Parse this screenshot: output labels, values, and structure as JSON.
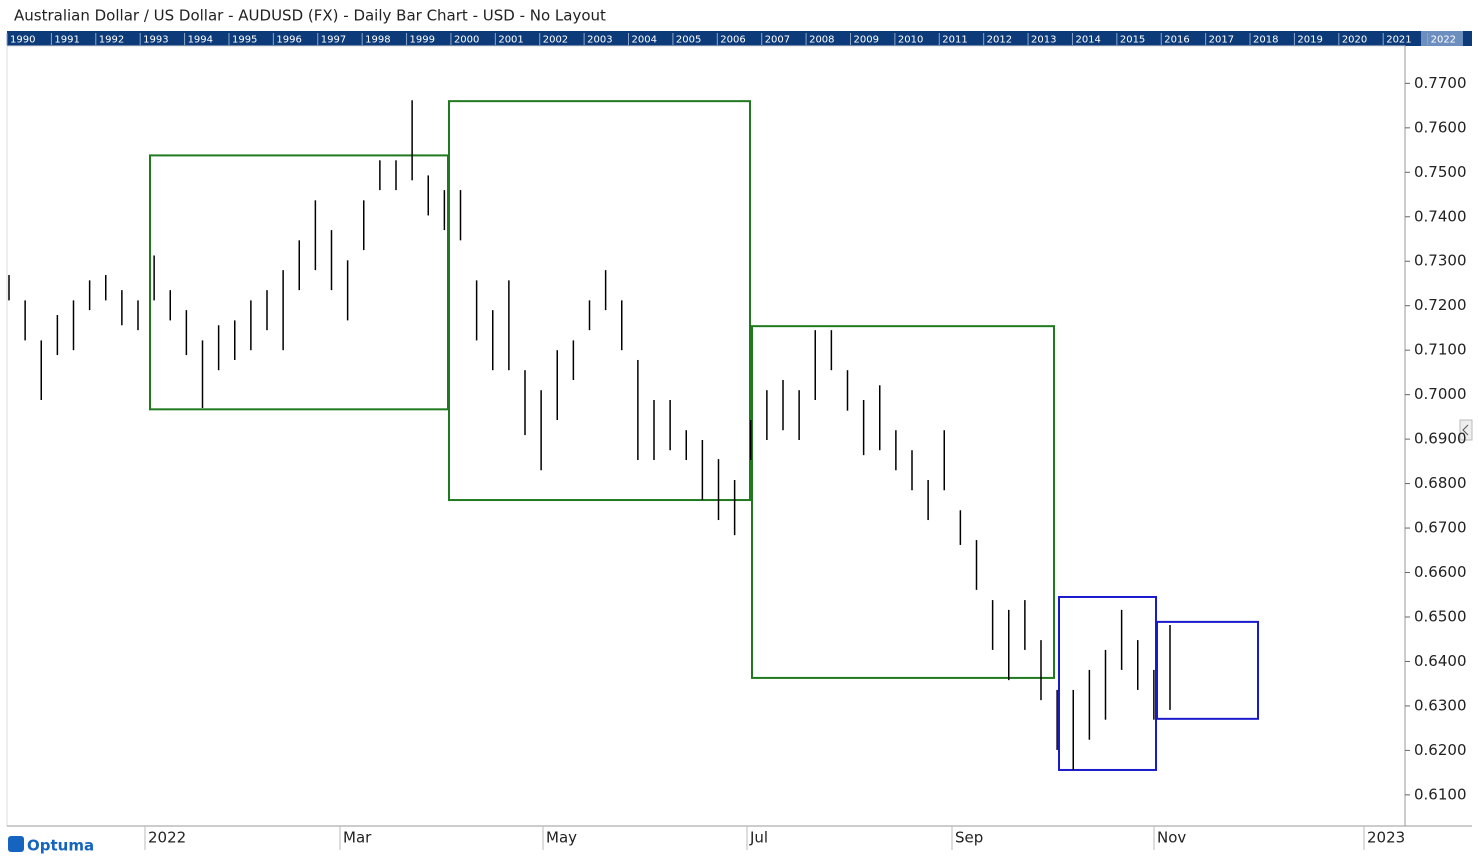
{
  "header": {
    "title": "Australian Dollar / US Dollar - AUDUSD (FX) - Daily Bar Chart - USD - No Layout"
  },
  "timeline_years": [
    "1990",
    "1991",
    "1992",
    "1993",
    "1994",
    "1995",
    "1996",
    "1997",
    "1998",
    "1999",
    "2000",
    "2001",
    "2002",
    "2003",
    "2004",
    "2005",
    "2006",
    "2007",
    "2008",
    "2009",
    "2010",
    "2011",
    "2012",
    "2013",
    "2014",
    "2015",
    "2016",
    "2017",
    "2018",
    "2019",
    "2020",
    "2021",
    "2022"
  ],
  "logo": "Optuma",
  "chart_data": {
    "type": "ohlc",
    "color": "#000000",
    "x_labels": [
      "2022",
      "Mar",
      "May",
      "Jul",
      "Sep",
      "Nov",
      "2023"
    ],
    "ylim": [
      0.603,
      0.782
    ],
    "yticks": [
      {
        "value": 0.61,
        "label": "0.6100"
      },
      {
        "value": 0.62,
        "label": "0.6200"
      },
      {
        "value": 0.63,
        "label": "0.6300"
      },
      {
        "value": 0.64,
        "label": "0.6400"
      },
      {
        "value": 0.65,
        "label": "0.6500"
      },
      {
        "value": 0.66,
        "label": "0.6600"
      },
      {
        "value": 0.67,
        "label": "0.6700"
      },
      {
        "value": 0.68,
        "label": "0.6800"
      },
      {
        "value": 0.69,
        "label": "0.6900"
      },
      {
        "value": 0.7,
        "label": "0.7000"
      },
      {
        "value": 0.71,
        "label": "0.7100"
      },
      {
        "value": 0.72,
        "label": "0.7200"
      },
      {
        "value": 0.73,
        "label": "0.7300"
      },
      {
        "value": 0.74,
        "label": "0.7400"
      },
      {
        "value": 0.75,
        "label": "0.7500"
      },
      {
        "value": 0.76,
        "label": "0.7600"
      },
      {
        "value": 0.77,
        "label": "0.7700"
      }
    ],
    "high": [
      0.7269,
      0.7212,
      0.7122,
      0.7179,
      0.7212,
      0.7257,
      0.7269,
      0.7235,
      0.7212,
      0.7313,
      0.7235,
      0.719,
      0.7122,
      0.7156,
      0.7167,
      0.7212,
      0.7235,
      0.728,
      0.7347,
      0.7437,
      0.737,
      0.7302,
      0.7437,
      0.7527,
      0.7527,
      0.7662,
      0.7493,
      0.746,
      0.746,
      0.7257,
      0.719,
      0.7257,
      0.7055,
      0.701,
      0.71,
      0.7122,
      0.7212,
      0.728,
      0.7212,
      0.7078,
      0.6988,
      0.6988,
      0.692,
      0.6898,
      0.6855,
      0.6808,
      0.6943,
      0.701,
      0.7033,
      0.701,
      0.7145,
      0.7145,
      0.7055,
      0.6988,
      0.7021,
      0.692,
      0.6875,
      0.6808,
      0.692,
      0.674,
      0.6673,
      0.6538,
      0.6516,
      0.6538,
      0.6448,
      0.6336,
      0.6336,
      0.6381,
      0.6426,
      0.6516,
      0.6448,
      0.6381,
      0.6482
    ],
    "low": [
      0.7212,
      0.7122,
      0.6988,
      0.7089,
      0.71,
      0.719,
      0.7212,
      0.7156,
      0.7145,
      0.7212,
      0.7167,
      0.7089,
      0.697,
      0.7055,
      0.7078,
      0.71,
      0.7145,
      0.71,
      0.7235,
      0.728,
      0.7235,
      0.7167,
      0.7325,
      0.746,
      0.746,
      0.7482,
      0.7403,
      0.737,
      0.7347,
      0.7122,
      0.7055,
      0.7055,
      0.6909,
      0.683,
      0.6943,
      0.7033,
      0.7145,
      0.719,
      0.71,
      0.6853,
      0.6853,
      0.6875,
      0.6853,
      0.6763,
      0.6718,
      0.6684,
      0.6853,
      0.6898,
      0.692,
      0.6898,
      0.6988,
      0.7055,
      0.6964,
      0.6864,
      0.6875,
      0.683,
      0.6785,
      0.6718,
      0.6785,
      0.6662,
      0.6561,
      0.6426,
      0.6358,
      0.6426,
      0.6313,
      0.6201,
      0.6156,
      0.6224,
      0.6269,
      0.6381,
      0.6336,
      0.6269,
      0.6291
    ],
    "boxes": [
      {
        "color": "#1f7a1f",
        "top": 0.7538,
        "bottom": 0.6967
      },
      {
        "color": "#1f7a1f",
        "top": 0.766,
        "bottom": 0.6763
      },
      {
        "color": "#1f7a1f",
        "top": 0.7154,
        "bottom": 0.6363
      },
      {
        "color": "#1a1acc",
        "top": 0.6545,
        "bottom": 0.6156
      },
      {
        "color": "#1a1acc",
        "top": 0.6489,
        "bottom": 0.6271
      }
    ]
  }
}
